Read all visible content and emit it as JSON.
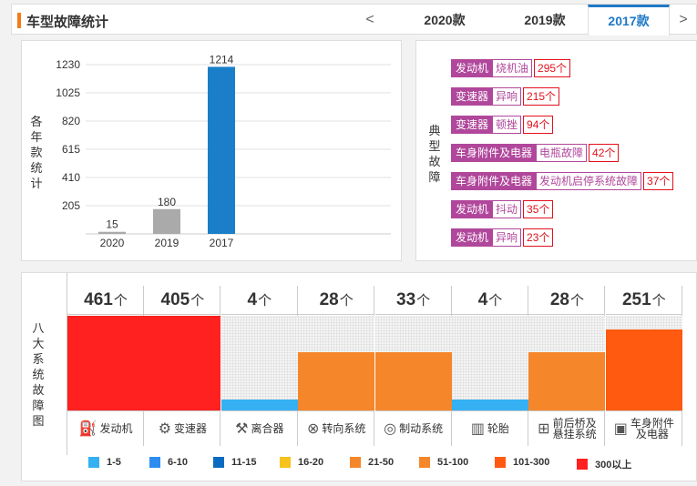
{
  "header": {
    "title": "车型故障统计",
    "tabs": [
      {
        "label": "2020款",
        "active": false
      },
      {
        "label": "2019款",
        "active": false
      },
      {
        "label": "2017款",
        "active": true
      }
    ],
    "prev": "<",
    "next": ">"
  },
  "chart_data": {
    "type": "bar",
    "title": "",
    "ylabel": "各年款统计",
    "categories": [
      "2020",
      "2019",
      "2017"
    ],
    "values": [
      15,
      180,
      1214
    ],
    "colors": [
      "#aaaaaa",
      "#aaaaaa",
      "#1a7fc8"
    ],
    "yticks": [
      205,
      410,
      615,
      820,
      1025,
      1230
    ],
    "ylim": [
      0,
      1230
    ],
    "grid": true
  },
  "faults": {
    "title": "典型故障",
    "items": [
      {
        "system": "发动机",
        "fault": "烧机油",
        "count": "295个"
      },
      {
        "system": "变速器",
        "fault": "异响",
        "count": "215个"
      },
      {
        "system": "变速器",
        "fault": "顿挫",
        "count": "94个"
      },
      {
        "system": "车身附件及电器",
        "fault": "电瓶故障",
        "count": "42个"
      },
      {
        "system": "车身附件及电器",
        "fault": "发动机启停系统故障",
        "count": "37个"
      },
      {
        "system": "发动机",
        "fault": "抖动",
        "count": "35个"
      },
      {
        "system": "发动机",
        "fault": "异响",
        "count": "23个"
      }
    ]
  },
  "systems": {
    "title": "八大系统故障图",
    "unit": "个",
    "items": [
      {
        "name": "发动机",
        "icon": "engine-icon",
        "glyph": "⛽",
        "count": "461",
        "level": 1.0,
        "color": "#ff2020"
      },
      {
        "name": "变速器",
        "icon": "gear-shift-icon",
        "glyph": "⚙",
        "count": "405",
        "level": 1.0,
        "color": "#ff2020"
      },
      {
        "name": "离合器",
        "icon": "clutch-icon",
        "glyph": "⚒",
        "count": "4",
        "level": 0.12,
        "color": "#35b0f3"
      },
      {
        "name": "转向系统",
        "icon": "steering-wheel-icon",
        "glyph": "⊗",
        "count": "28",
        "level": 0.62,
        "color": "#f5862a"
      },
      {
        "name": "制动系统",
        "icon": "brake-disc-icon",
        "glyph": "◎",
        "count": "33",
        "level": 0.62,
        "color": "#f5862a"
      },
      {
        "name": "轮胎",
        "icon": "tire-icon",
        "glyph": "▥",
        "count": "4",
        "level": 0.12,
        "color": "#35b0f3"
      },
      {
        "name": "前后桥及悬挂系统",
        "icon": "suspension-icon",
        "glyph": "⊞",
        "count": "28",
        "level": 0.62,
        "color": "#f5862a"
      },
      {
        "name": "车身附件及电器",
        "icon": "battery-icon",
        "glyph": "▣",
        "count": "251",
        "level": 0.86,
        "color": "#ff5a10"
      }
    ]
  },
  "legend": [
    {
      "label": "1-5",
      "color": "#35b0f3"
    },
    {
      "label": "6-10",
      "color": "#2e8cf0"
    },
    {
      "label": "11-15",
      "color": "#0a6cc0"
    },
    {
      "label": "16-20",
      "color": "#f6c21c"
    },
    {
      "label": "21-50",
      "color": "#f5862a"
    },
    {
      "label": "51-100",
      "color": "#f5862a"
    },
    {
      "label": "101-300",
      "color": "#ff5a10"
    },
    {
      "label": "300以上",
      "color": "#ff2020"
    }
  ]
}
